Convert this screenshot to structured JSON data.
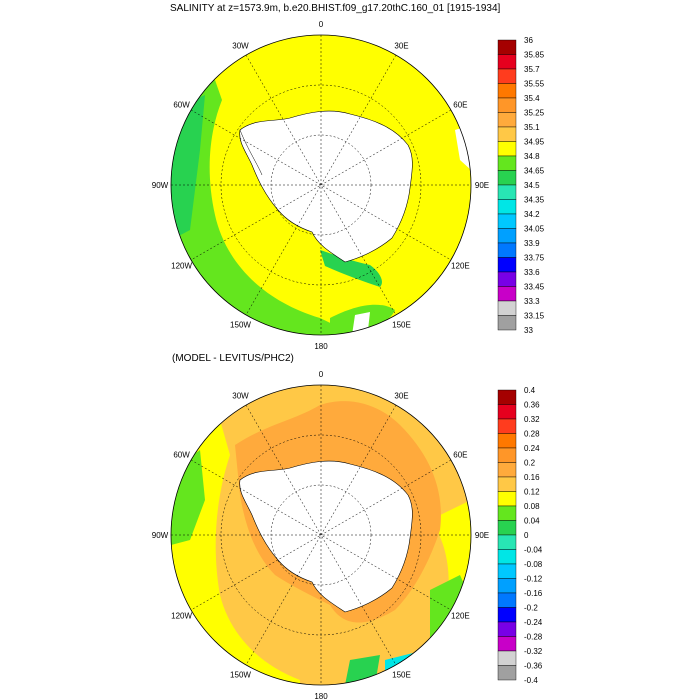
{
  "panel1": {
    "title": "SALINITY at z=1573.9m, b.e20.BHIST.f09_g17.20thC.160_01 [1915-1934]",
    "lon_labels": [
      "0",
      "30E",
      "60E",
      "90E",
      "120E",
      "150E",
      "180",
      "150W",
      "120W",
      "90W",
      "60W",
      "30W"
    ],
    "colorbar": {
      "labels": [
        "36",
        "35.85",
        "35.7",
        "35.55",
        "35.4",
        "35.25",
        "35.1",
        "34.95",
        "34.8",
        "34.65",
        "34.5",
        "34.35",
        "34.2",
        "34.05",
        "33.9",
        "33.75",
        "33.6",
        "33.45",
        "33.3",
        "33.15",
        "33"
      ],
      "colors": [
        "#a50000",
        "#e6001e",
        "#ff3c1e",
        "#ff7800",
        "#ff9628",
        "#ffaa3c",
        "#ffc846",
        "#ffff00",
        "#64e61e",
        "#28d250",
        "#28e6b4",
        "#00e6e6",
        "#00c8ff",
        "#00a0ff",
        "#0078ff",
        "#0000ff",
        "#7800e6",
        "#c800c8",
        "#d2d2d2",
        "#a0a0a0"
      ]
    }
  },
  "panel2": {
    "title": "(MODEL - LEVITUS/PHC2)",
    "lon_labels": [
      "0",
      "30E",
      "60E",
      "90E",
      "120E",
      "150E",
      "180",
      "150W",
      "120W",
      "90W",
      "60W",
      "30W"
    ],
    "colorbar": {
      "labels": [
        "0.4",
        "0.36",
        "0.32",
        "0.28",
        "0.24",
        "0.2",
        "0.16",
        "0.12",
        "0.08",
        "0.04",
        "0",
        "-0.04",
        "-0.08",
        "-0.12",
        "-0.16",
        "-0.2",
        "-0.24",
        "-0.28",
        "-0.32",
        "-0.36",
        "-0.4"
      ],
      "colors": [
        "#a50000",
        "#e6001e",
        "#ff3c1e",
        "#ff7800",
        "#ff9628",
        "#ffaa3c",
        "#ffc846",
        "#ffff00",
        "#64e61e",
        "#28d250",
        "#28e6b4",
        "#00e6e6",
        "#00c8ff",
        "#00a0ff",
        "#0078ff",
        "#0000ff",
        "#7800e6",
        "#c800c8",
        "#d2d2d2",
        "#a0a0a0"
      ]
    }
  },
  "colors": {
    "land": "#ffffff",
    "ocean_top": "#ffff00",
    "ocean_top_edge": "#64e61e",
    "ocean_bottom": "#ffc846",
    "ocean_bottom_warm": "#ffaa3c"
  }
}
